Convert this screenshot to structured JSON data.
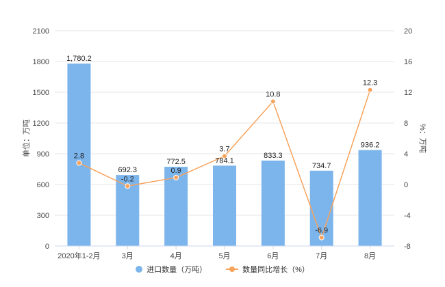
{
  "chart_data": {
    "type": "bar",
    "categories": [
      "2020年1-2月",
      "3月",
      "4月",
      "5月",
      "6月",
      "7月",
      "8月"
    ],
    "series": [
      {
        "name": "进口数量（万吨）",
        "type": "bar",
        "axis": "left",
        "values": [
          1780.2,
          692.3,
          772.5,
          784.1,
          833.3,
          734.7,
          936.2
        ],
        "labels": [
          "1,780.2",
          "692.3",
          "772.5",
          "784.1",
          "833.3",
          "734.7",
          "936.2"
        ]
      },
      {
        "name": "数量同比增长（%）",
        "type": "line",
        "axis": "right",
        "values": [
          2.8,
          -0.2,
          0.9,
          3.7,
          10.8,
          -6.9,
          12.3
        ],
        "labels": [
          "2.8",
          "-0.2",
          "0.9",
          "3.7",
          "10.8",
          "-6.9",
          "12.3"
        ]
      }
    ],
    "ylabel_left": "单位：万吨",
    "ylabel_right": "%：万吨",
    "ylim_left": [
      0,
      2100
    ],
    "yticks_left": [
      0,
      300,
      600,
      900,
      1200,
      1500,
      1800,
      2100
    ],
    "ylim_right": [
      -8,
      20
    ],
    "yticks_right": [
      -8,
      -4,
      0,
      4,
      8,
      12,
      16,
      20
    ],
    "grid": true,
    "legend_position": "bottom-center"
  },
  "colors": {
    "bar": "#7cb5ec",
    "line": "#f7a35c",
    "grid": "#e6e6e6",
    "axis": "#ccd6eb"
  },
  "legend": {
    "bar_label": "进口数量（万吨）",
    "line_label": "数量同比增长（%）"
  }
}
